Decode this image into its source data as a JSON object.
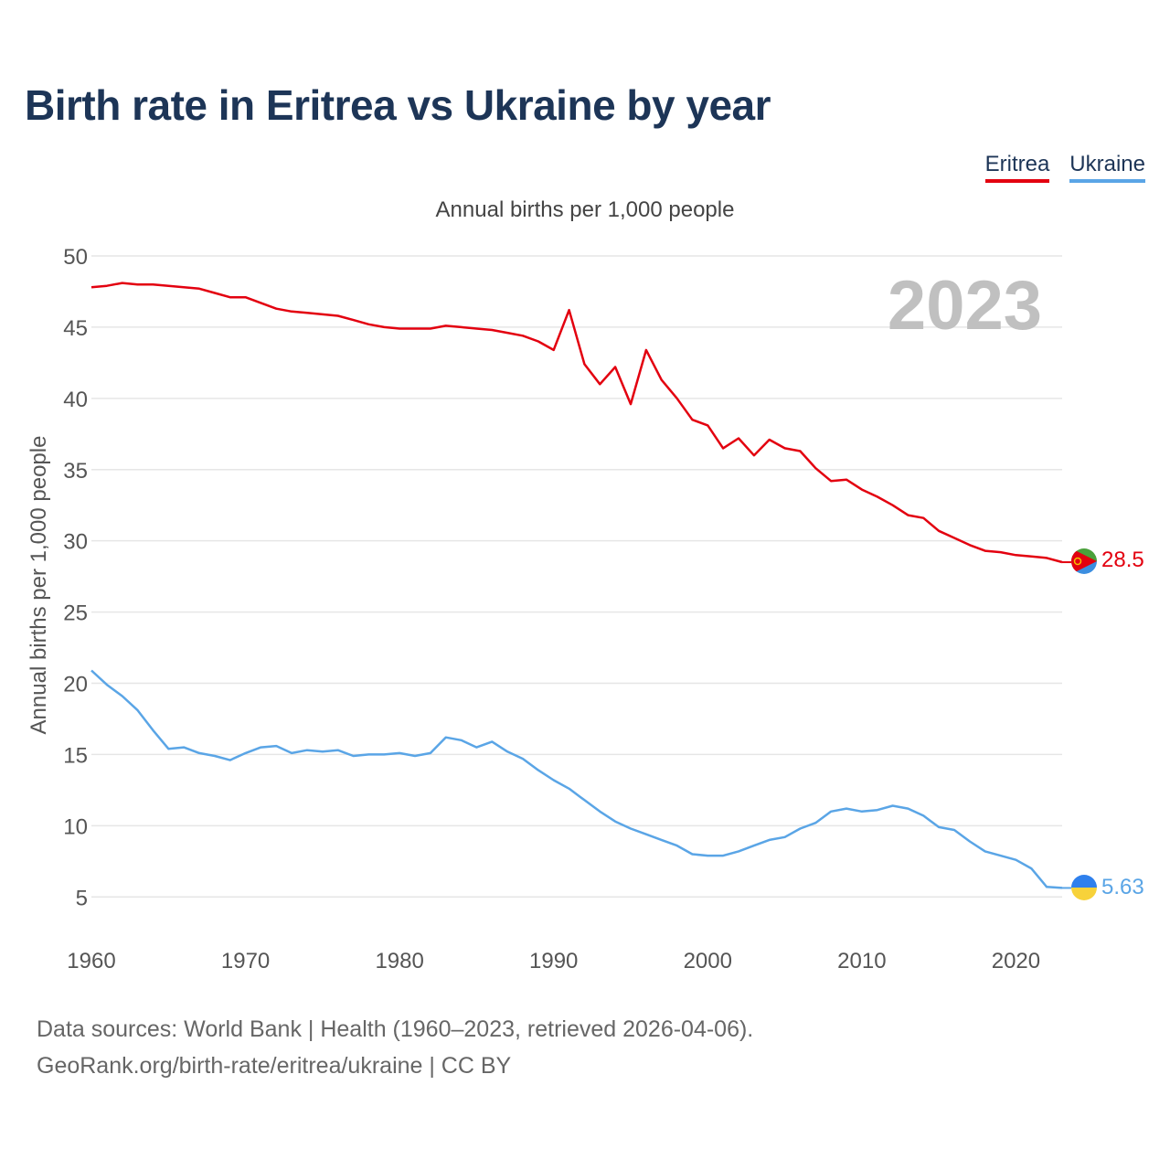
{
  "title": "Birth rate in Eritrea vs Ukraine by year",
  "subtitle": "Annual births per 1,000 people",
  "legend": [
    {
      "name": "Eritrea",
      "color": "#e3000f"
    },
    {
      "name": "Ukraine",
      "color": "#5aa5e6"
    }
  ],
  "year_label": "2023",
  "source_line1": "Data sources: World Bank | Health (1960–2023, retrieved 2026-04-06).",
  "source_line2": "GeoRank.org/birth-rate/eritrea/ukraine | CC BY",
  "chart_data": {
    "type": "line",
    "title": "Birth rate in Eritrea vs Ukraine by year",
    "ylabel": "Annual births per 1,000 people",
    "xlabel": "",
    "xlim": [
      1960,
      2023
    ],
    "ylim": [
      2,
      50
    ],
    "xticks": [
      1960,
      1970,
      1980,
      1990,
      2000,
      2010,
      2020
    ],
    "yticks": [
      5,
      10,
      15,
      20,
      25,
      30,
      35,
      40,
      45,
      50
    ],
    "grid": true,
    "x": [
      1960,
      1961,
      1962,
      1963,
      1964,
      1965,
      1966,
      1967,
      1968,
      1969,
      1970,
      1971,
      1972,
      1973,
      1974,
      1975,
      1976,
      1977,
      1978,
      1979,
      1980,
      1981,
      1982,
      1983,
      1984,
      1985,
      1986,
      1987,
      1988,
      1989,
      1990,
      1991,
      1992,
      1993,
      1994,
      1995,
      1996,
      1997,
      1998,
      1999,
      2000,
      2001,
      2002,
      2003,
      2004,
      2005,
      2006,
      2007,
      2008,
      2009,
      2010,
      2011,
      2012,
      2013,
      2014,
      2015,
      2016,
      2017,
      2018,
      2019,
      2020,
      2021,
      2022,
      2023
    ],
    "series": [
      {
        "name": "Eritrea",
        "color": "#e3000f",
        "end_label": "28.5",
        "values": [
          47.8,
          47.9,
          48.1,
          48.0,
          48.0,
          47.9,
          47.8,
          47.7,
          47.4,
          47.1,
          47.1,
          46.7,
          46.3,
          46.1,
          46.0,
          45.9,
          45.8,
          45.5,
          45.2,
          45.0,
          44.9,
          44.9,
          44.9,
          45.1,
          45.0,
          44.9,
          44.8,
          44.6,
          44.4,
          44.0,
          43.4,
          46.2,
          42.4,
          41.0,
          42.2,
          39.6,
          43.4,
          41.3,
          40.0,
          38.5,
          38.1,
          36.5,
          37.2,
          36.0,
          37.1,
          36.5,
          36.3,
          35.1,
          34.2,
          34.3,
          33.6,
          33.1,
          32.5,
          31.8,
          31.6,
          30.7,
          30.2,
          29.7,
          29.3,
          29.2,
          29.0,
          28.9,
          28.8,
          28.5
        ]
      },
      {
        "name": "Ukraine",
        "color": "#5aa5e6",
        "end_label": "5.63",
        "values": [
          20.9,
          19.9,
          19.1,
          18.1,
          16.7,
          15.4,
          15.5,
          15.1,
          14.9,
          14.6,
          15.1,
          15.5,
          15.6,
          15.1,
          15.3,
          15.2,
          15.3,
          14.9,
          15.0,
          15.0,
          15.1,
          14.9,
          15.1,
          16.2,
          16.0,
          15.5,
          15.9,
          15.2,
          14.7,
          13.9,
          13.2,
          12.6,
          11.8,
          11.0,
          10.3,
          9.8,
          9.4,
          9.0,
          8.6,
          8.0,
          7.9,
          7.9,
          8.2,
          8.6,
          9.0,
          9.2,
          9.8,
          10.2,
          11.0,
          11.2,
          11.0,
          11.1,
          11.4,
          11.2,
          10.7,
          9.9,
          9.7,
          8.9,
          8.2,
          7.9,
          7.6,
          7.0,
          5.7,
          5.63
        ]
      }
    ]
  }
}
